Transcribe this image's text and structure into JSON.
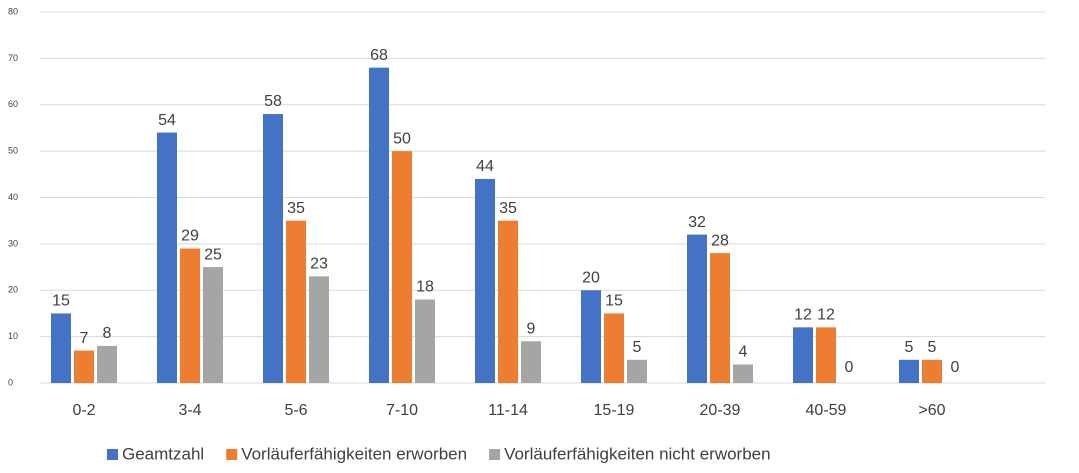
{
  "chart_data": {
    "type": "bar",
    "categories": [
      "0-2",
      "3-4",
      "5-6",
      "7-10",
      "11-14",
      "15-19",
      "20-39",
      "40-59",
      ">60"
    ],
    "series": [
      {
        "name": "Geamtzahl",
        "color": "#4472c4",
        "values": [
          15,
          54,
          58,
          68,
          44,
          20,
          32,
          12,
          5
        ]
      },
      {
        "name": "Vorläuferfähigkeiten erworben",
        "color": "#ed7d31",
        "values": [
          7,
          29,
          35,
          50,
          35,
          15,
          28,
          12,
          5
        ]
      },
      {
        "name": "Vorläuferfähigkeiten nicht erworben",
        "color": "#a5a5a5",
        "values": [
          8,
          25,
          23,
          18,
          9,
          5,
          4,
          0,
          0
        ]
      }
    ],
    "ylim": [
      0,
      80
    ],
    "yticks": [
      0,
      10,
      20,
      30,
      40,
      50,
      60,
      70,
      80
    ],
    "grid": true,
    "legend": "bottom"
  }
}
